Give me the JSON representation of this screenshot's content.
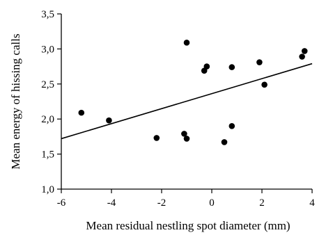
{
  "chart_data": {
    "type": "scatter",
    "title": "",
    "xlabel": "Mean residual nestling spot diameter (mm)",
    "ylabel": "Mean energy of hissing calls",
    "xlim": [
      -6,
      4
    ],
    "ylim": [
      1.0,
      3.5
    ],
    "x_ticks": [
      -6,
      -4,
      -2,
      0,
      2,
      4
    ],
    "x_tick_labels": [
      "-6",
      "-4",
      "-2",
      "0",
      "2",
      "4"
    ],
    "y_ticks": [
      1.0,
      1.5,
      2.0,
      2.5,
      3.0,
      3.5
    ],
    "y_tick_labels": [
      "1,0",
      "1,5",
      "2,0",
      "2,5",
      "3,0",
      "3,5"
    ],
    "grid": false,
    "legend": "none",
    "series": [
      {
        "x": [
          -5.2,
          -4.1,
          -2.2,
          -1.1,
          -1.0,
          -1.0,
          -0.3,
          -0.2,
          0.5,
          0.8,
          0.8,
          1.9,
          2.1,
          3.6,
          3.7
        ],
        "y": [
          2.09,
          1.98,
          1.73,
          1.79,
          3.09,
          1.72,
          2.69,
          2.75,
          1.67,
          2.74,
          1.9,
          2.81,
          2.49,
          2.89,
          2.97
        ]
      }
    ],
    "trendline": {
      "x": [
        -6,
        4
      ],
      "y": [
        1.72,
        2.79
      ]
    },
    "colors": {
      "marker": "#000000",
      "line": "#000000",
      "axis": "#000000"
    }
  }
}
